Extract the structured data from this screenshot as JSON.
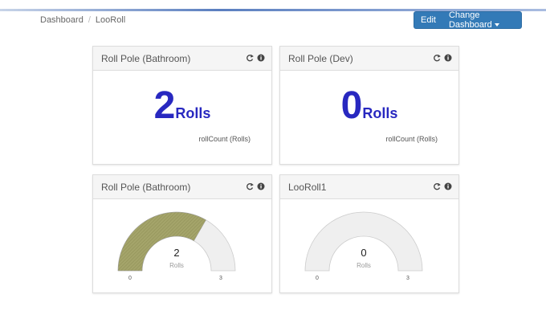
{
  "breadcrumb": [
    "Dashboard",
    "LooRoll"
  ],
  "breadcrumb_separator": "/",
  "buttons": [
    "Edit",
    "Change Dashboard"
  ],
  "widgets": [
    {
      "title": "Roll Pole (Bathroom)",
      "value": 2,
      "unit": "Rolls",
      "caption": "rollCount (Rolls)"
    },
    {
      "title": "Roll Pole (Dev)",
      "value": 0,
      "unit": "Rolls",
      "caption": "rollCount (Rolls)"
    }
  ],
  "gauges": [
    {
      "title": "Roll Pole (Bathroom)",
      "value": 2,
      "unit": "Rolls",
      "min": 0,
      "max": 3
    },
    {
      "title": "LooRoll1",
      "value": 0,
      "unit": "Rolls",
      "min": 0,
      "max": 3
    }
  ]
}
